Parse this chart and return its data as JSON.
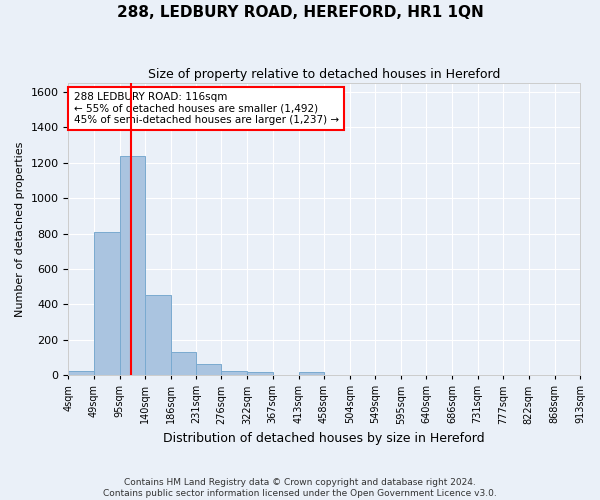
{
  "title": "288, LEDBURY ROAD, HEREFORD, HR1 1QN",
  "subtitle": "Size of property relative to detached houses in Hereford",
  "xlabel": "Distribution of detached houses by size in Hereford",
  "ylabel": "Number of detached properties",
  "bar_values": [
    25,
    810,
    1240,
    455,
    130,
    65,
    25,
    15,
    0,
    15,
    0,
    0,
    0,
    0,
    0,
    0,
    0,
    0,
    0,
    0
  ],
  "bin_labels": [
    "4sqm",
    "49sqm",
    "95sqm",
    "140sqm",
    "186sqm",
    "231sqm",
    "276sqm",
    "322sqm",
    "367sqm",
    "413sqm",
    "458sqm",
    "504sqm",
    "549sqm",
    "595sqm",
    "640sqm",
    "686sqm",
    "731sqm",
    "777sqm",
    "822sqm",
    "868sqm",
    "913sqm"
  ],
  "bar_color": "#aac4e0",
  "bar_edge_color": "#7aaad0",
  "ylim": [
    0,
    1650
  ],
  "yticks": [
    0,
    200,
    400,
    600,
    800,
    1000,
    1200,
    1400,
    1600
  ],
  "property_line_x": 116,
  "bin_edges": [
    4,
    49,
    95,
    140,
    186,
    231,
    276,
    322,
    367,
    413,
    458,
    504,
    549,
    595,
    640,
    686,
    731,
    777,
    822,
    868,
    913
  ],
  "annotation_text": "288 LEDBURY ROAD: 116sqm\n← 55% of detached houses are smaller (1,492)\n45% of semi-detached houses are larger (1,237) →",
  "annotation_box_color": "white",
  "annotation_box_edge_color": "red",
  "red_line_color": "red",
  "footer_line1": "Contains HM Land Registry data © Crown copyright and database right 2024.",
  "footer_line2": "Contains public sector information licensed under the Open Government Licence v3.0.",
  "bg_color": "#eaf0f8",
  "grid_color": "white"
}
